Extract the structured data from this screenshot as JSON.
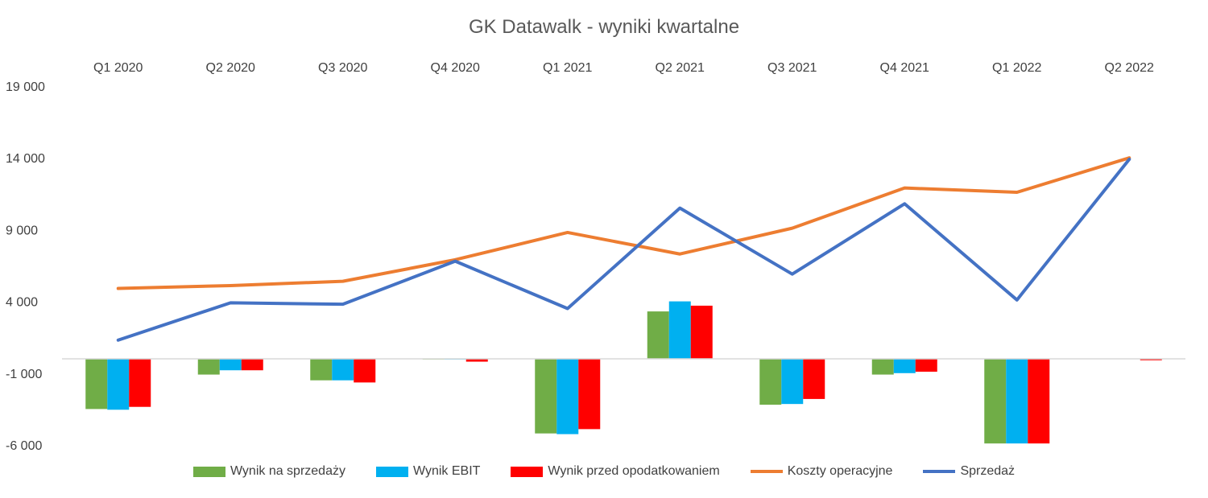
{
  "chart_data": {
    "type": "bar",
    "title": "GK Datawalk - wyniki kwartalne",
    "categories": [
      "Q1 2020",
      "Q2 2020",
      "Q3 2020",
      "Q4 2020",
      "Q1 2021",
      "Q2 2021",
      "Q3 2021",
      "Q4 2021",
      "Q1 2022",
      "Q2 2022"
    ],
    "ylim": [
      -6000,
      19000
    ],
    "yticks": [
      -6000,
      -1000,
      4000,
      9000,
      14000,
      19000
    ],
    "ytick_labels": [
      "-6 000",
      "-1 000",
      "4 000",
      "9 000",
      "14 000",
      "19 000"
    ],
    "bar_series": [
      {
        "name": "Wynik na sprzedaży",
        "color": "#70AD47",
        "values": [
          -3500,
          -1100,
          -1500,
          -50,
          -5200,
          3300,
          -3200,
          -1100,
          -5900,
          0
        ]
      },
      {
        "name": "Wynik EBIT",
        "color": "#00B0F0",
        "values": [
          -3550,
          -800,
          -1500,
          -50,
          -5250,
          4000,
          -3150,
          -1000,
          -5900,
          0
        ]
      },
      {
        "name": "Wynik przed opodatkowaniem",
        "color": "#FF0000",
        "values": [
          -3350,
          -800,
          -1650,
          -200,
          -4900,
          3700,
          -2800,
          -900,
          -5900,
          -100
        ]
      }
    ],
    "line_series": [
      {
        "name": "Koszty operacyjne",
        "color": "#ED7D31",
        "values": [
          4900,
          5100,
          5400,
          6900,
          8800,
          7300,
          9100,
          11900,
          11600,
          14000
        ]
      },
      {
        "name": "Sprzedaż",
        "color": "#4472C4",
        "values": [
          1300,
          3900,
          3800,
          6800,
          3500,
          10500,
          5900,
          10800,
          4100,
          13900
        ]
      }
    ],
    "legend_position": "bottom",
    "grid": false
  }
}
